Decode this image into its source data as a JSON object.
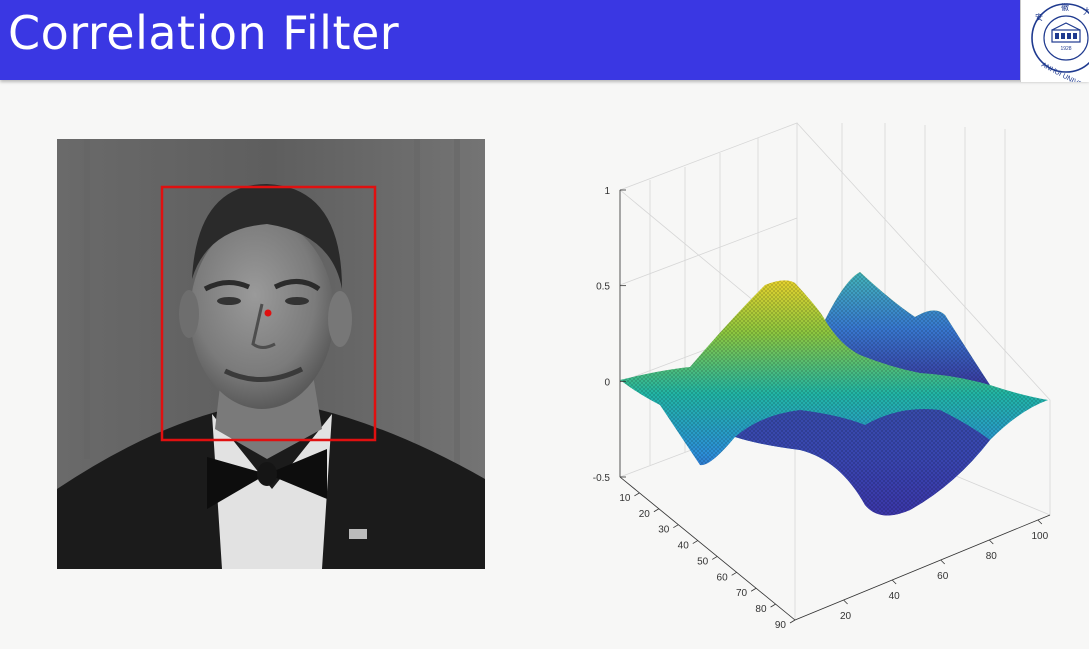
{
  "slide": {
    "title": "Correlation Filter"
  },
  "logo": {
    "ring_text": "ANHUI UNIVERSITY",
    "year": "1928",
    "hanzi": "安 徽 大 学",
    "color": "#1f3a8f"
  },
  "photo": {
    "description_icon": "portrait-photo",
    "box_color": "#e01010",
    "center_dot_color": "#e01010"
  },
  "chart_data": {
    "type": "surface",
    "z_ticks": [
      "1",
      "0.5",
      "0",
      "-0.5"
    ],
    "x_ticks": [
      "10",
      "20",
      "30",
      "40",
      "50",
      "60",
      "70",
      "80",
      "90"
    ],
    "y_ticks": [
      "20",
      "40",
      "60",
      "80",
      "100"
    ],
    "zlim": [
      -0.5,
      1
    ],
    "xlim": [
      0,
      90
    ],
    "ylim": [
      0,
      100
    ],
    "grid": true,
    "colormap": "parula",
    "colors": {
      "low": "#3d26a8",
      "mid": "#1fb5a7",
      "high": "#f5d02a"
    }
  }
}
